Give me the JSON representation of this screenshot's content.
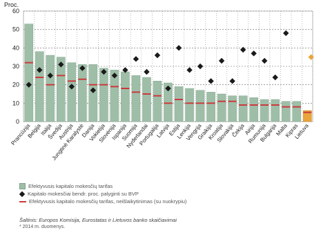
{
  "chart_data": {
    "type": "bar",
    "ylabel": "Proc.",
    "ylim": [
      0,
      60
    ],
    "yticks": [
      0,
      10,
      20,
      30,
      40,
      50,
      60
    ],
    "grid": true,
    "categories": [
      "Prancūzija",
      "Belgija",
      "Italija",
      "Švedija",
      "Austrija",
      "Jungtinė Karalystė",
      "Danija",
      "Vokietija",
      "Slovėnija",
      "Ispanija",
      "Suomija",
      "Nyderlandai",
      "Portugalija",
      "Latvija",
      "Estija",
      "Lenkija",
      "Vengrija",
      "Graikija",
      "Kroatija",
      "Slovakija",
      "Čekija",
      "Airija",
      "Rumunija",
      "Bulgarija",
      "Malta",
      "Kipras",
      "Lietuva"
    ],
    "series": [
      {
        "name": "Efektyvusis kapitalo mokesčių tarifas",
        "type": "bar",
        "color": "#9fbea8",
        "highlight": {
          "index": 26,
          "color": "#e9a43a"
        },
        "values": [
          53,
          38,
          36,
          35,
          32,
          31,
          31,
          29,
          28,
          27,
          25,
          24,
          22,
          21,
          19,
          18,
          17,
          16,
          15,
          14,
          14,
          13,
          12,
          12,
          11,
          11,
          6
        ]
      },
      {
        "name": "Kapitalo mokesčiai bendr. proc. palyginti su BVP",
        "type": "scatter",
        "marker": "diamond",
        "color": "#1a1a1a",
        "values": [
          20,
          28,
          25,
          31,
          19,
          29,
          17,
          27,
          25,
          28,
          34,
          27,
          36,
          18,
          40,
          28,
          30,
          22,
          33,
          22,
          39,
          37,
          33,
          24,
          48,
          null,
          null
        ]
      },
      {
        "name": "Efektyvusis kapitalo mokesčių tarifas, neišlaikytinimas (su nuokrypiu)",
        "type": "segment",
        "color": "#c93a3a",
        "values": [
          32,
          24,
          20,
          25,
          22,
          23,
          20,
          20,
          19,
          18,
          16,
          15,
          14,
          10,
          12,
          10,
          10,
          10,
          11,
          11,
          9,
          9,
          9,
          9,
          8,
          8,
          5
        ]
      }
    ],
    "extra_marker": {
      "index": 26,
      "value": 35,
      "color": "#e9a43a"
    }
  },
  "legend": [
    {
      "text": "Efektyvusis kapitalo mokesčių tarifas"
    },
    {
      "text": "Kapitalo mokesčiai bendr. proc. palyginti su BVP"
    },
    {
      "text": "Efektyvusis kapitalo mokesčių tarifas, neišlaikytinimas (su nuokrypiu)"
    }
  ],
  "source": "Šaltinis: Europos Komisija, Eurostatas ir Lietuvos banko skaičiavimai",
  "note": "* 2014 m. duomenys."
}
